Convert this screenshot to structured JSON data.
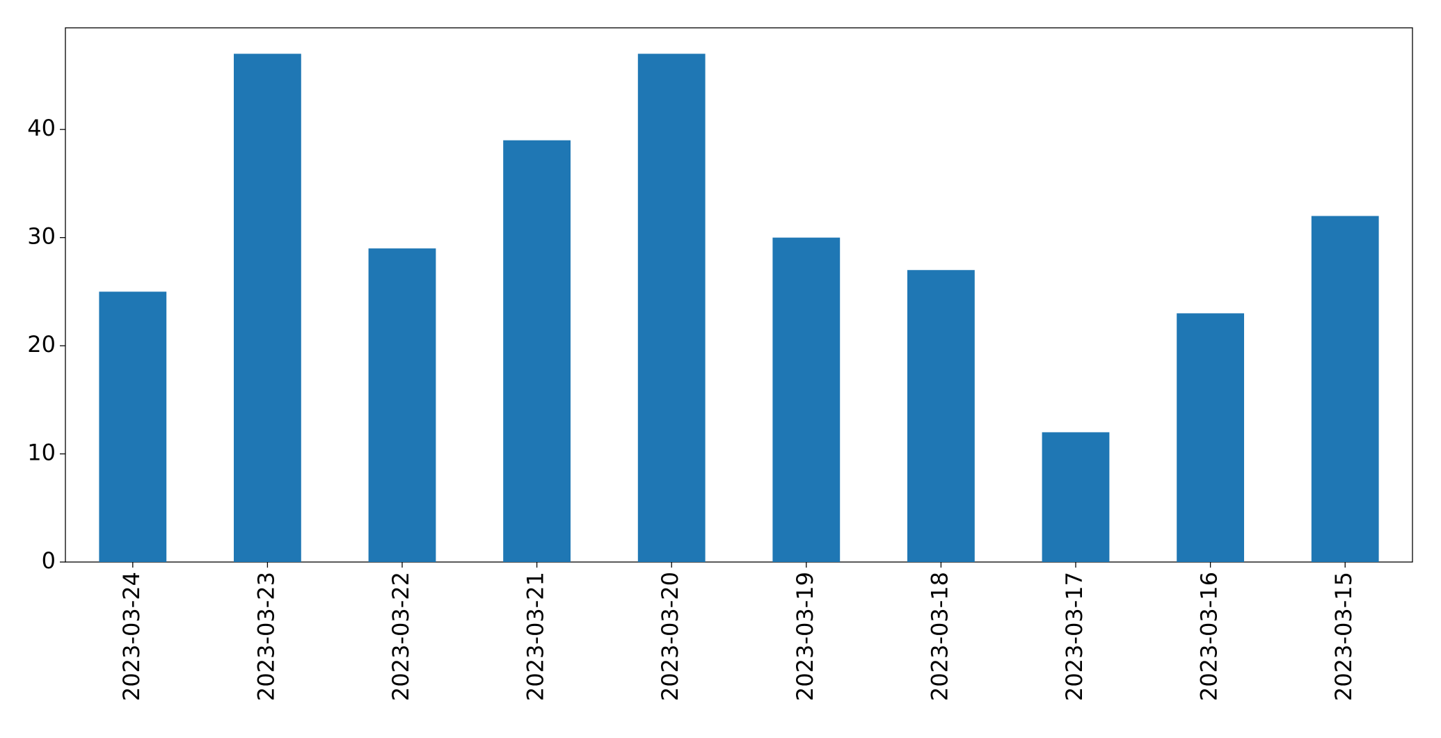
{
  "chart_data": {
    "type": "bar",
    "categories": [
      "2023-03-24",
      "2023-03-23",
      "2023-03-22",
      "2023-03-21",
      "2023-03-20",
      "2023-03-19",
      "2023-03-18",
      "2023-03-17",
      "2023-03-16",
      "2023-03-15"
    ],
    "values": [
      25,
      47,
      29,
      39,
      47,
      30,
      27,
      12,
      23,
      32
    ],
    "color": "#1f77b4",
    "ylim": [
      0,
      49.4
    ],
    "yticks": [
      0,
      10,
      20,
      30,
      40
    ],
    "grid": false
  }
}
